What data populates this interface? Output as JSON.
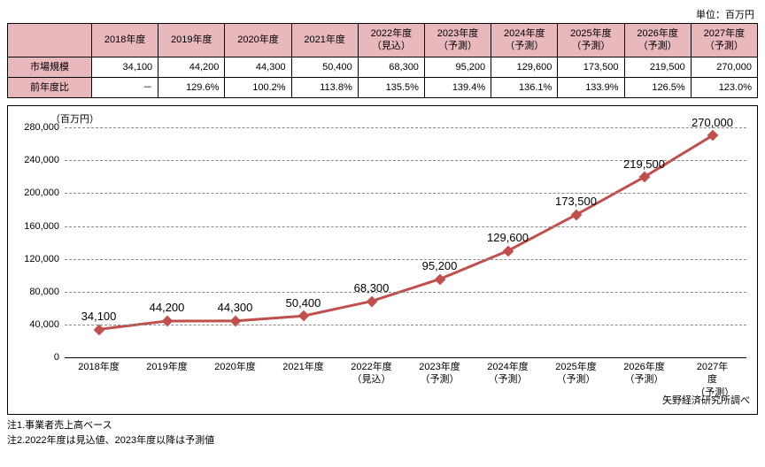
{
  "unit_label": "単位：百万円",
  "table": {
    "row_headers": [
      "市場規模",
      "前年度比"
    ],
    "col_headers": [
      "2018年度",
      "2019年度",
      "2020年度",
      "2021年度",
      "2022年度\n（見込）",
      "2023年度\n（予測）",
      "2024年度\n（予測）",
      "2025年度\n（予測）",
      "2026年度\n（予測）",
      "2027年度\n（予測）"
    ],
    "market_size": [
      "34,100",
      "44,200",
      "44,300",
      "50,400",
      "68,300",
      "95,200",
      "129,600",
      "173,500",
      "219,500",
      "270,000"
    ],
    "yoy": [
      "－",
      "129.6%",
      "100.2%",
      "113.8%",
      "135.5%",
      "139.4%",
      "136.1%",
      "133.9%",
      "126.5%",
      "123.0%"
    ]
  },
  "chart": {
    "type": "line",
    "y_unit_label": "（百万円）",
    "ylim": [
      0,
      280000
    ],
    "ytick_step": 40000,
    "yticks": [
      "0",
      "40,000",
      "80,000",
      "120,000",
      "160,000",
      "200,000",
      "240,000",
      "280,000"
    ],
    "x_labels": [
      "2018年度",
      "2019年度",
      "2020年度",
      "2021年度",
      "2022年度\n（見込）",
      "2023年度\n（予測）",
      "2024年度\n（予測）",
      "2025年度\n（予測）",
      "2026年度\n（予測）",
      "2027年度\n（予測）"
    ],
    "values": [
      34100,
      44200,
      44300,
      50400,
      68300,
      95200,
      129600,
      173500,
      219500,
      270000
    ],
    "data_labels": [
      "34,100",
      "44,200",
      "44,300",
      "50,400",
      "68,300",
      "95,200",
      "129,600",
      "173,500",
      "219,500",
      "270,000"
    ],
    "line_color": "#c0504d",
    "line_width": 3,
    "marker_color": "#c0504d",
    "marker_shape": "diamond",
    "grid_color": "#888888",
    "background_color": "#ffffff",
    "data_label_fontsize": 13
  },
  "source": "矢野経済研究所調べ",
  "notes": [
    "注1.事業者売上高ベース",
    "注2.2022年度は見込値、2023年度以降は予測値"
  ]
}
